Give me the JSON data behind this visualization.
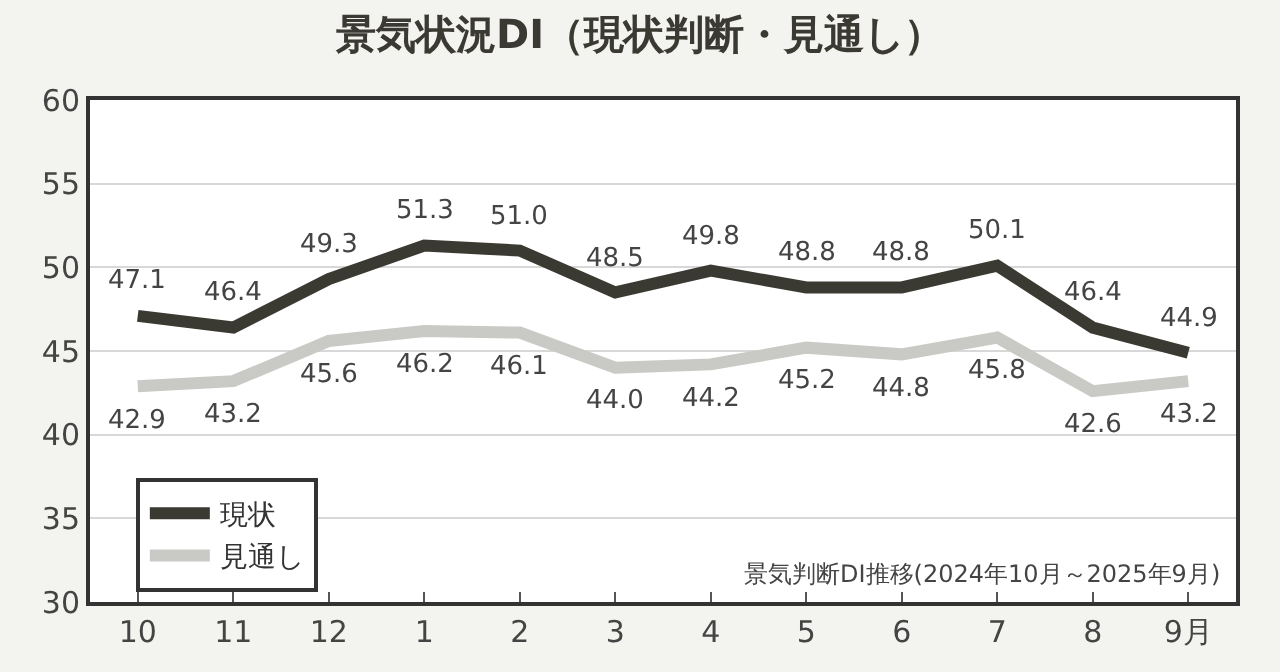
{
  "chart_data": {
    "type": "line",
    "title": "景気状況DI（現状判断・見通し）",
    "categories": [
      "10",
      "11",
      "12",
      "1",
      "2",
      "3",
      "4",
      "5",
      "6",
      "7",
      "8",
      "9月"
    ],
    "series": [
      {
        "name": "現状",
        "color": "#3b3a32",
        "values": [
          47.1,
          46.4,
          49.3,
          51.3,
          51.0,
          48.5,
          49.8,
          48.8,
          48.8,
          50.1,
          46.4,
          44.9
        ],
        "value_labels": [
          "47.1",
          "46.4",
          "49.3",
          "51.3",
          "51.0",
          "48.5",
          "49.8",
          "48.8",
          "48.8",
          "50.1",
          "46.4",
          "44.9"
        ]
      },
      {
        "name": "見通し",
        "color": "#c9c9c5",
        "values": [
          42.9,
          43.2,
          45.6,
          46.2,
          46.1,
          44.0,
          44.2,
          45.2,
          44.8,
          45.8,
          42.6,
          43.2
        ],
        "value_labels": [
          "42.9",
          "43.2",
          "45.6",
          "46.2",
          "46.1",
          "44.0",
          "44.2",
          "45.2",
          "44.8",
          "45.8",
          "42.6",
          "43.2"
        ]
      }
    ],
    "ylim": [
      30,
      60
    ],
    "yticks": [
      30,
      35,
      40,
      45,
      50,
      55,
      60
    ],
    "grid": "y",
    "legend": "bottom left",
    "marker": "none",
    "line_style": "solid",
    "annotations": [
      "景気判断DI推移(2024年10月～2025年9月)"
    ]
  }
}
